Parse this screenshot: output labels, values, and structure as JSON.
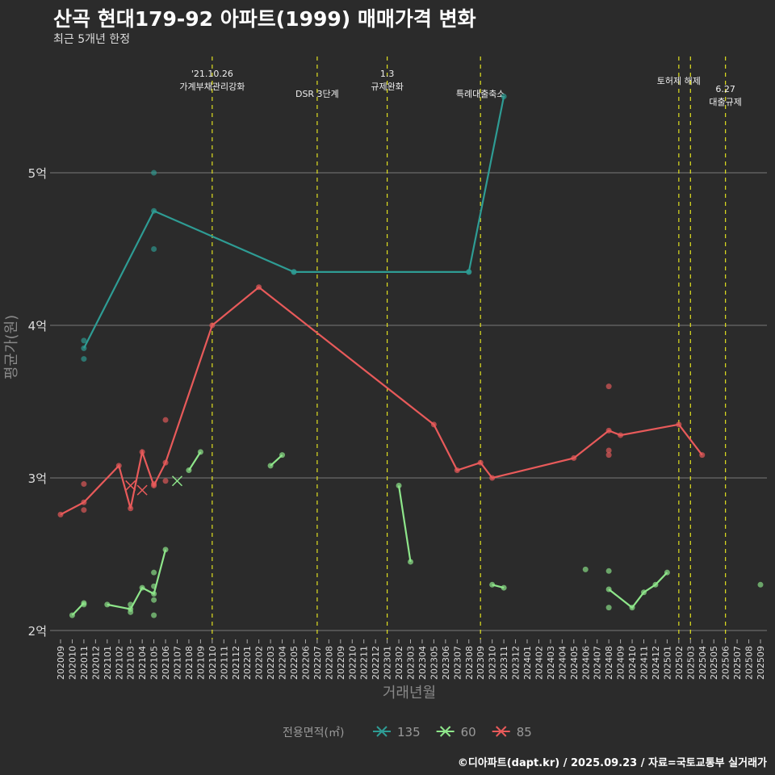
{
  "chart_data": {
    "type": "line",
    "title": "산곡 현대179-92 아파트(1999) 매매가격 변화",
    "subtitle": "최근 5개년 한정",
    "xlabel": "거래년월",
    "ylabel": "평균가(원)",
    "ylim": [
      1.95,
      5.6
    ],
    "yticks": [
      {
        "v": 2,
        "label": "2억"
      },
      {
        "v": 3,
        "label": "3억"
      },
      {
        "v": 4,
        "label": "4억"
      },
      {
        "v": 5,
        "label": "5억"
      }
    ],
    "grid": true,
    "x_categories": [
      "202009",
      "202010",
      "202011",
      "202012",
      "202101",
      "202102",
      "202103",
      "202104",
      "202105",
      "202106",
      "202107",
      "202108",
      "202109",
      "202110",
      "202111",
      "202112",
      "202201",
      "202202",
      "202203",
      "202204",
      "202205",
      "202206",
      "202207",
      "202208",
      "202209",
      "202210",
      "202211",
      "202212",
      "202301",
      "202302",
      "202303",
      "202304",
      "202305",
      "202306",
      "202307",
      "202308",
      "202309",
      "202310",
      "202311",
      "202312",
      "202401",
      "202402",
      "202403",
      "202404",
      "202405",
      "202406",
      "202407",
      "202408",
      "202409",
      "202410",
      "202411",
      "202412",
      "202501",
      "202502",
      "202503",
      "202504",
      "202505",
      "202506",
      "202507",
      "202508",
      "202509"
    ],
    "legend": {
      "title": "전용면적(㎡)",
      "placement": "bottom"
    },
    "series": [
      {
        "name": "135",
        "color": "#2e9c94",
        "segments": [
          [
            [
              "202011",
              3.85
            ],
            [
              "202105",
              4.75
            ],
            [
              "202205",
              4.35
            ],
            [
              "202308",
              4.35
            ],
            [
              "202311",
              5.5
            ]
          ]
        ],
        "points": [
          [
            "202011",
            3.9
          ],
          [
            "202011",
            3.78
          ],
          [
            "202105",
            5.0
          ],
          [
            "202105",
            4.5
          ],
          [
            "202205",
            4.35
          ],
          [
            "202308",
            4.35
          ]
        ],
        "cross_points": []
      },
      {
        "name": "60",
        "color": "#8ee68a",
        "segments": [
          [
            [
              "202010",
              2.1
            ],
            [
              "202011",
              2.18
            ]
          ],
          [
            [
              "202101",
              2.17
            ],
            [
              "202103",
              2.14
            ],
            [
              "202104",
              2.28
            ],
            [
              "202105",
              2.24
            ],
            [
              "202106",
              2.53
            ]
          ],
          [
            [
              "202108",
              3.05
            ],
            [
              "202109",
              3.17
            ]
          ],
          [
            [
              "202203",
              3.08
            ],
            [
              "202204",
              3.15
            ]
          ],
          [
            [
              "202302",
              2.95
            ],
            [
              "202303",
              2.45
            ]
          ],
          [
            [
              "202310",
              2.3
            ],
            [
              "202311",
              2.28
            ]
          ],
          [
            [
              "202408",
              2.27
            ],
            [
              "202410",
              2.15
            ],
            [
              "202411",
              2.25
            ],
            [
              "202412",
              2.3
            ],
            [
              "202501",
              2.38
            ]
          ]
        ],
        "points": [
          [
            "202011",
            2.17
          ],
          [
            "202103",
            2.17
          ],
          [
            "202103",
            2.12
          ],
          [
            "202105",
            2.38
          ],
          [
            "202105",
            2.29
          ],
          [
            "202105",
            2.2
          ],
          [
            "202105",
            2.1
          ],
          [
            "202406",
            2.4
          ],
          [
            "202408",
            2.39
          ],
          [
            "202408",
            2.15
          ],
          [
            "202509",
            2.3
          ]
        ],
        "cross_points": [
          [
            "202107",
            2.98
          ]
        ]
      },
      {
        "name": "85",
        "color": "#e85a5a",
        "segments": [
          [
            [
              "202009",
              2.76
            ],
            [
              "202011",
              2.84
            ],
            [
              "202102",
              3.08
            ],
            [
              "202103",
              2.8
            ],
            [
              "202104",
              3.17
            ],
            [
              "202105",
              2.95
            ],
            [
              "202106",
              3.1
            ],
            [
              "202110",
              4.0
            ],
            [
              "202202",
              4.25
            ],
            [
              "202305",
              3.35
            ],
            [
              "202307",
              3.05
            ],
            [
              "202309",
              3.1
            ],
            [
              "202310",
              3.0
            ],
            [
              "202405",
              3.13
            ],
            [
              "202408",
              3.31
            ],
            [
              "202409",
              3.28
            ],
            [
              "202502",
              3.35
            ],
            [
              "202504",
              3.15
            ]
          ]
        ],
        "points": [
          [
            "202011",
            2.96
          ],
          [
            "202011",
            2.79
          ],
          [
            "202105",
            2.96
          ],
          [
            "202106",
            2.98
          ],
          [
            "202106",
            3.38
          ],
          [
            "202408",
            3.6
          ],
          [
            "202408",
            3.18
          ],
          [
            "202408",
            3.15
          ]
        ],
        "cross_points": [
          [
            "202103",
            2.95
          ],
          [
            "202104",
            2.92
          ]
        ]
      }
    ],
    "annotations": [
      {
        "x": "202110",
        "lines": [
          "'21.10.26",
          "가계부채관리강화"
        ],
        "row": 0
      },
      {
        "x": "202207",
        "lines": [
          "DSR 3단계"
        ],
        "row": 2
      },
      {
        "x": "202301",
        "lines": [
          "1.3",
          "규제완화"
        ],
        "row": 0
      },
      {
        "x": "202309",
        "lines": [
          "특례대출축소"
        ],
        "row": 2
      },
      {
        "x": "202502",
        "lines": [
          "토허제 해제"
        ],
        "row": 0.7,
        "dx": 0
      },
      {
        "x": "202503",
        "lines": [],
        "row": 0
      },
      {
        "x": "202506",
        "lines": [
          "6.27",
          "대출규제"
        ],
        "row": 1.5
      }
    ],
    "caption": "©디아파트(dapt.kr) / 2025.09.23 / 자료=국토교통부 실거래가"
  }
}
